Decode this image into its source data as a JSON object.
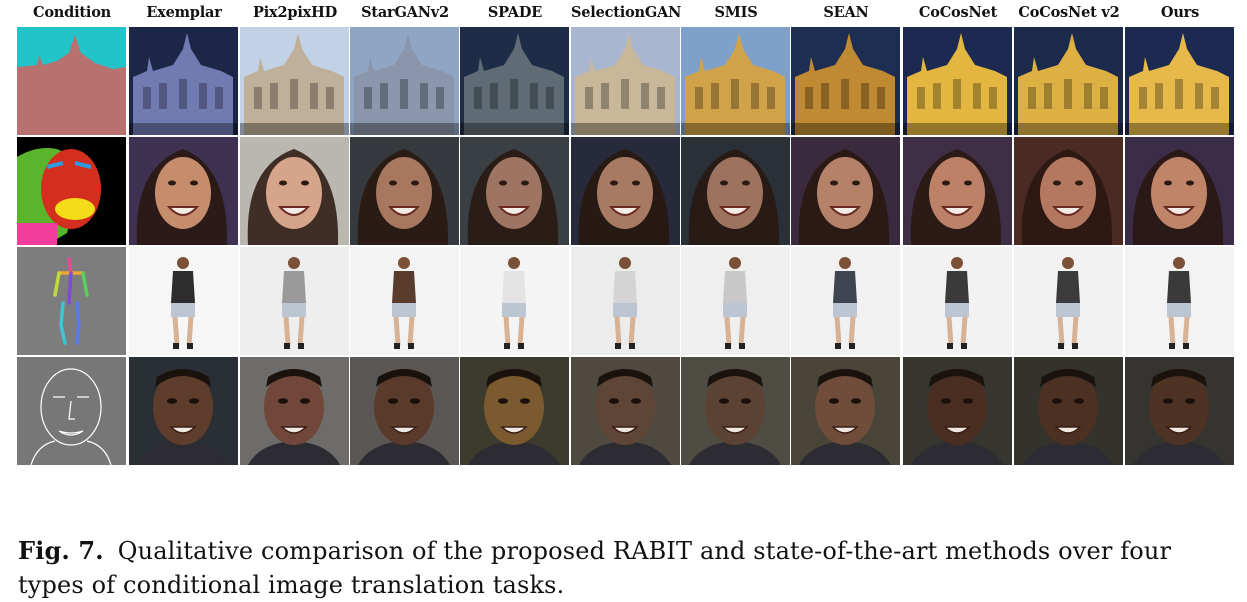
{
  "figure": {
    "columns": [
      "Condition",
      "Exemplar",
      "Pix2pixHD",
      "StarGANv2",
      "SPADE",
      "SelectionGAN",
      "SMIS",
      "SEAN",
      "CoCosNet",
      "CoCosNet v2",
      "Ours"
    ],
    "rows": [
      {
        "task": "segmentation-to-building",
        "kind": "building",
        "palette": [
          "#e9bb3f",
          "#6f7bb1",
          "#bfb09a",
          "#8996ab",
          "#5f6c75",
          "#c9b79a",
          "#d0a24a",
          "#c08a32",
          "#e2b63f",
          "#dcb043",
          "#e7b84a"
        ],
        "sky": [
          "#22c3c9",
          "#1c2747",
          "#c2d2e6",
          "#8ea5c4",
          "#1d2d47",
          "#a8b7cf",
          "#7fa0c8",
          "#1e2e52",
          "#1c2a52",
          "#1c2a4c",
          "#1c2a52"
        ]
      },
      {
        "task": "face-parsing-to-face",
        "kind": "face",
        "palette": [
          "#d83b1e",
          "#c58d6c",
          "#d5a48a",
          "#a77760",
          "#9e7462",
          "#a97a63",
          "#9d7360",
          "#b58269",
          "#bd8168",
          "#b47760",
          "#c08468"
        ],
        "sky": [
          "#000000",
          "#3f3152",
          "#b9b7b0",
          "#363a3e",
          "#3a3f44",
          "#262a3a",
          "#2a3038",
          "#392a3e",
          "#3e2f46",
          "#4a2a22",
          "#3b2c48"
        ]
      },
      {
        "task": "pose-to-person",
        "kind": "person",
        "palette": [
          "#6a9a56",
          "#2d2d2d",
          "#9a9a9a",
          "#5a3c2c",
          "#e3e3e3",
          "#d4d4d4",
          "#c8c8c8",
          "#3e4450",
          "#3a3a3a",
          "#3b3b3b",
          "#3a3a3a"
        ],
        "sky": [
          "#7d7d7d",
          "#f6f6f6",
          "#eeeeee",
          "#f3f3f3",
          "#f4f4f4",
          "#ececec",
          "#efefef",
          "#f1f1f1",
          "#f2f2f2",
          "#f2f2f2",
          "#f3f3f3"
        ]
      },
      {
        "task": "edge-to-face",
        "kind": "face2",
        "palette": [
          "#ffffff",
          "#5f3d2c",
          "#70473a",
          "#5a3a2a",
          "#7b5a30",
          "#5e4535",
          "#5c4232",
          "#704c3a",
          "#4a2e22",
          "#4c3022",
          "#4e3224"
        ],
        "sky": [
          "#777777",
          "#2a2f35",
          "#6d6c6a",
          "#5a5754",
          "#3d3a2e",
          "#4e4a40",
          "#4f4c44",
          "#494538",
          "#36352f",
          "#33322c",
          "#353430"
        ]
      }
    ]
  },
  "caption": {
    "label": "Fig. 7.",
    "text": "Qualitative comparison of the proposed RABIT and state-of-the-art methods over four types of conditional image translation tasks."
  },
  "colors": {
    "text": "#111111",
    "background": "#ffffff"
  }
}
